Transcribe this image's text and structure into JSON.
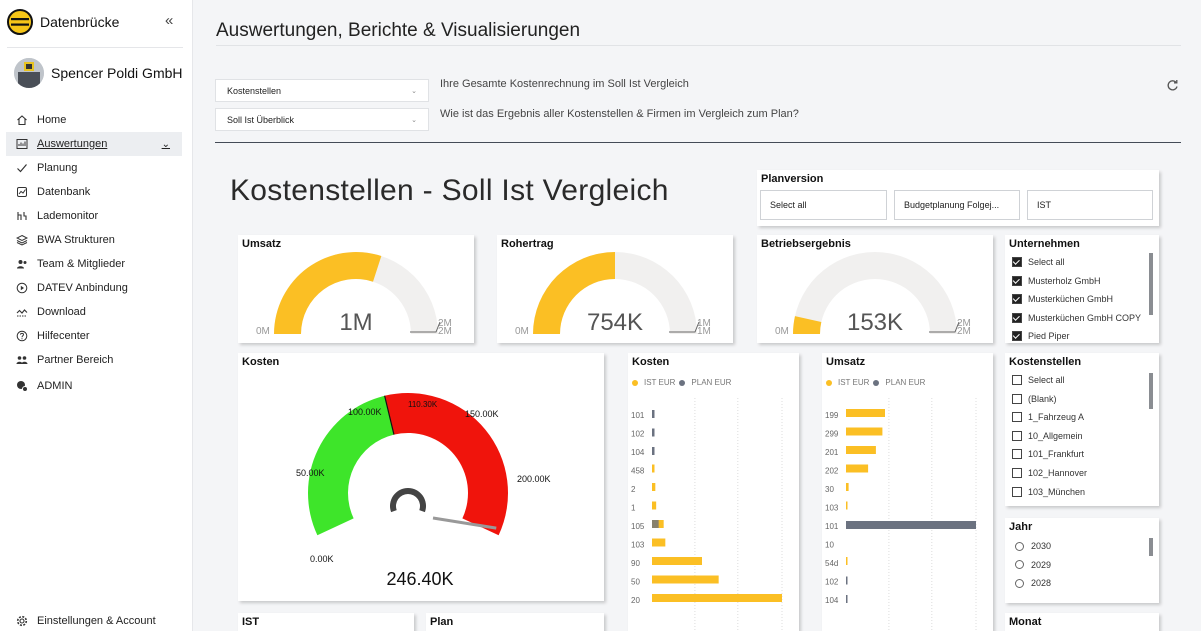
{
  "app": {
    "name": "Datenbrücke",
    "company": "Spencer Poldi GmbH",
    "collapse_icon": "«"
  },
  "sidebar": {
    "items": [
      {
        "label": "Home",
        "icon": "home-icon"
      },
      {
        "label": "Auswertungen",
        "icon": "report-icon",
        "active": true
      },
      {
        "label": "Planung",
        "icon": "check-icon"
      },
      {
        "label": "Datenbank",
        "icon": "database-icon"
      },
      {
        "label": "Lademonitor",
        "icon": "monitor-icon"
      },
      {
        "label": "BWA Strukturen",
        "icon": "layers-icon"
      },
      {
        "label": "Team & Mitglieder",
        "icon": "team-icon"
      },
      {
        "label": "DATEV Anbindung",
        "icon": "play-icon"
      },
      {
        "label": "Download",
        "icon": "download-icon"
      },
      {
        "label": "Hilfecenter",
        "icon": "help-icon"
      },
      {
        "label": "Partner Bereich",
        "icon": "partner-icon"
      },
      {
        "label": "ADMIN",
        "icon": "admin-icon"
      }
    ],
    "settings_label": "Einstellungen & Account"
  },
  "header": {
    "title": "Auswertungen, Berichte & Visualisierungen",
    "select1": "Kostenstellen",
    "select2": "Soll Ist Überblick",
    "desc1": "Ihre Gesamte Kostenrechnung im Soll Ist Vergleich",
    "desc2": "Wie ist das Ergebnis aller Kostenstellen & Firmen im Vergleich zum Plan?"
  },
  "report": {
    "title": "Kostenstellen - Soll Ist Vergleich",
    "planversion": {
      "title": "Planversion",
      "options": [
        "Select all",
        "Budgetplanung Folgej...",
        "IST"
      ]
    },
    "kpis": [
      {
        "title": "Umsatz",
        "value": "1M",
        "min": "0M",
        "max": "2M",
        "max2": "2M",
        "fraction": 0.6
      },
      {
        "title": "Rohertrag",
        "value": "754K",
        "min": "0M",
        "max": "1M",
        "max2": "1M",
        "fraction": 0.5
      },
      {
        "title": "Betriebsergebnis",
        "value": "153K",
        "min": "0M",
        "max": "2M",
        "max2": "2M",
        "fraction": 0.07
      }
    ],
    "unternehmen": {
      "title": "Unternehmen",
      "items": [
        {
          "label": "Select all",
          "checked": true
        },
        {
          "label": "Musterholz GmbH",
          "checked": true
        },
        {
          "label": "Musterküchen GmbH",
          "checked": true
        },
        {
          "label": "Musterküchen GmbH COPY",
          "checked": true
        },
        {
          "label": "Pied Piper",
          "checked": true
        }
      ]
    },
    "kosten_gauge": {
      "title": "Kosten",
      "value_label": "246.40K",
      "ticks": [
        "0.00K",
        "50.00K",
        "100.00K",
        "110.30K",
        "150.00K",
        "200.00K"
      ],
      "value": 246.4,
      "max": 250,
      "green_to": 110.3,
      "colors": {
        "green": "#3ee52a",
        "red": "#f0140c"
      }
    },
    "kosten_bars": {
      "title": "Kosten",
      "legend": [
        "IST EUR",
        "PLAN EUR"
      ],
      "categories": [
        "101",
        "102",
        "104",
        "458",
        "2",
        "1",
        "105",
        "103",
        "90",
        "50",
        "20"
      ],
      "ist": [
        0,
        0,
        0,
        1.5,
        2,
        2.5,
        7,
        8,
        30,
        40,
        78
      ],
      "plan": [
        1.5,
        1.5,
        1.5,
        0,
        0,
        0,
        4,
        0,
        0,
        0,
        0
      ]
    },
    "umsatz_bars": {
      "title": "Umsatz",
      "legend": [
        "IST EUR",
        "PLAN EUR"
      ],
      "categories": [
        "199",
        "299",
        "201",
        "202",
        "30",
        "103",
        "101",
        "10",
        "54d",
        "102",
        "104"
      ],
      "ist": [
        30,
        28,
        23,
        17,
        2,
        1,
        0,
        0,
        0.5,
        0,
        0
      ],
      "plan": [
        0,
        0,
        0,
        0,
        0,
        0,
        100,
        0,
        0,
        1,
        1
      ]
    },
    "kostenstellen": {
      "title": "Kostenstellen",
      "items": [
        "Select all",
        "(Blank)",
        "1_Fahrzeug A",
        "10_Allgemein",
        "101_Frankfurt",
        "102_Hannover",
        "103_München"
      ]
    },
    "jahr": {
      "title": "Jahr",
      "items": [
        "2030",
        "2029",
        "2028"
      ]
    },
    "monat": {
      "title": "Monat"
    },
    "ist": {
      "title": "IST"
    },
    "plan": {
      "title": "Plan"
    },
    "colors": {
      "ist": "#fbbf24",
      "plan": "#6b7280",
      "track": "#f1f0ef"
    }
  }
}
